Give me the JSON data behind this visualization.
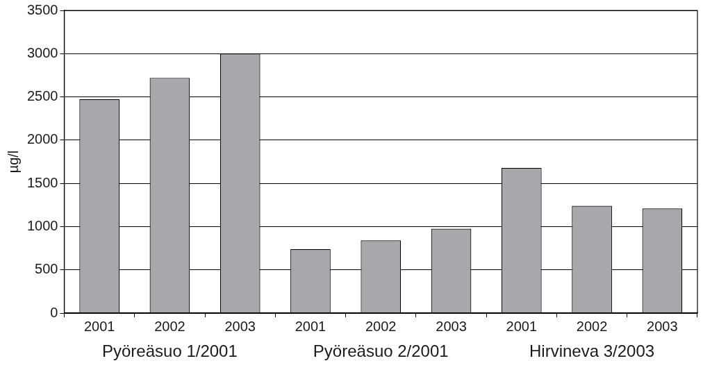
{
  "chart_data": {
    "type": "bar",
    "ylabel": "µg/l",
    "categories": [
      "2001",
      "2002",
      "2003",
      "2001",
      "2002",
      "2003",
      "2001",
      "2002",
      "2003"
    ],
    "values": [
      2475,
      2720,
      3000,
      740,
      840,
      975,
      1680,
      1240,
      1210
    ],
    "color": "#a7a8ac",
    "ylim": [
      0,
      3500
    ],
    "yticks": [
      0,
      500,
      1000,
      1500,
      2000,
      2500,
      3000,
      3500
    ],
    "grid": "y",
    "legend": false,
    "annotations": [
      "Pyöreäsuo 1/2001",
      "Pyöreäsuo 2/2001",
      "Hirvineva 3/2003"
    ]
  }
}
